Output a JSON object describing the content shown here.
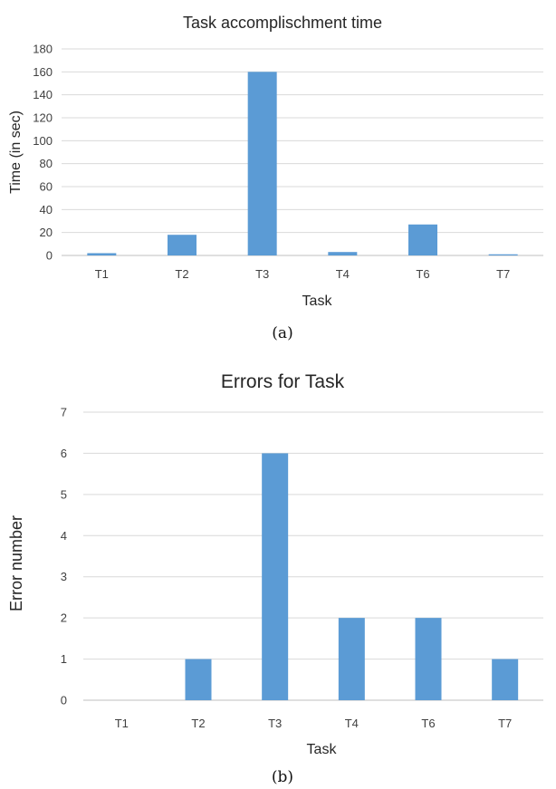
{
  "chart_data": [
    {
      "type": "bar",
      "title": "Task accomplischment time",
      "xlabel": "Task",
      "ylabel": "Time (in sec)",
      "categories": [
        "T1",
        "T2",
        "T3",
        "T4",
        "T6",
        "T7"
      ],
      "values": [
        2,
        18,
        160,
        3,
        27,
        1
      ],
      "ylim": [
        0,
        180
      ],
      "yticks": [
        "0",
        "20",
        "40",
        "60",
        "80",
        "100",
        "120",
        "140",
        "160",
        "180"
      ],
      "grid": true,
      "caption": "(a)",
      "color": "#5b9bd5"
    },
    {
      "type": "bar",
      "title": "Errors for Task",
      "xlabel": "Task",
      "ylabel": "Error number",
      "categories": [
        "T1",
        "T2",
        "T3",
        "T4",
        "T6",
        "T7"
      ],
      "values": [
        0,
        1,
        6,
        2,
        2,
        1
      ],
      "ylim": [
        0,
        7
      ],
      "yticks": [
        "0",
        "1",
        "2",
        "3",
        "4",
        "5",
        "6",
        "7"
      ],
      "grid": true,
      "caption": "(b)",
      "color": "#5b9bd5"
    }
  ]
}
